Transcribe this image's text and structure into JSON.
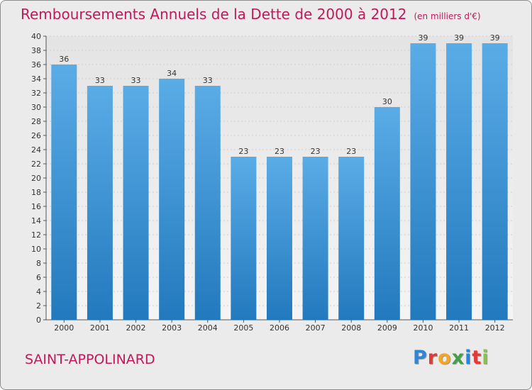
{
  "title": "Remboursements Annuels de la Dette de 2000 à 2012",
  "unit_note": "(en milliers d'€)",
  "commune": "SAINT-APPOLINARD",
  "logo": {
    "letters": [
      "P",
      "r",
      "o",
      "x",
      "i",
      "t",
      "i"
    ],
    "colors": [
      "#2e86d4",
      "#e53935",
      "#f5a623",
      "#43a047",
      "#1e88e5",
      "#e53935",
      "#8bc34a"
    ]
  },
  "colors": {
    "title": "#c2185b",
    "bar_top": "#5aace6",
    "bar_bottom": "#2279bd",
    "background": "#ebebeb"
  },
  "chart_data": {
    "type": "bar",
    "title": "Remboursements Annuels de la Dette de 2000 à 2012",
    "categories": [
      "2000",
      "2001",
      "2002",
      "2003",
      "2004",
      "2005",
      "2006",
      "2007",
      "2008",
      "2009",
      "2010",
      "2011",
      "2012"
    ],
    "values": [
      36,
      33,
      33,
      34,
      33,
      23,
      23,
      23,
      23,
      30,
      39,
      39,
      39
    ],
    "ylim": [
      0,
      40
    ],
    "yticks": [
      0,
      2,
      4,
      6,
      8,
      10,
      12,
      14,
      16,
      18,
      20,
      22,
      24,
      26,
      28,
      30,
      32,
      34,
      36,
      38,
      40
    ],
    "grid": true,
    "legend": "none"
  }
}
